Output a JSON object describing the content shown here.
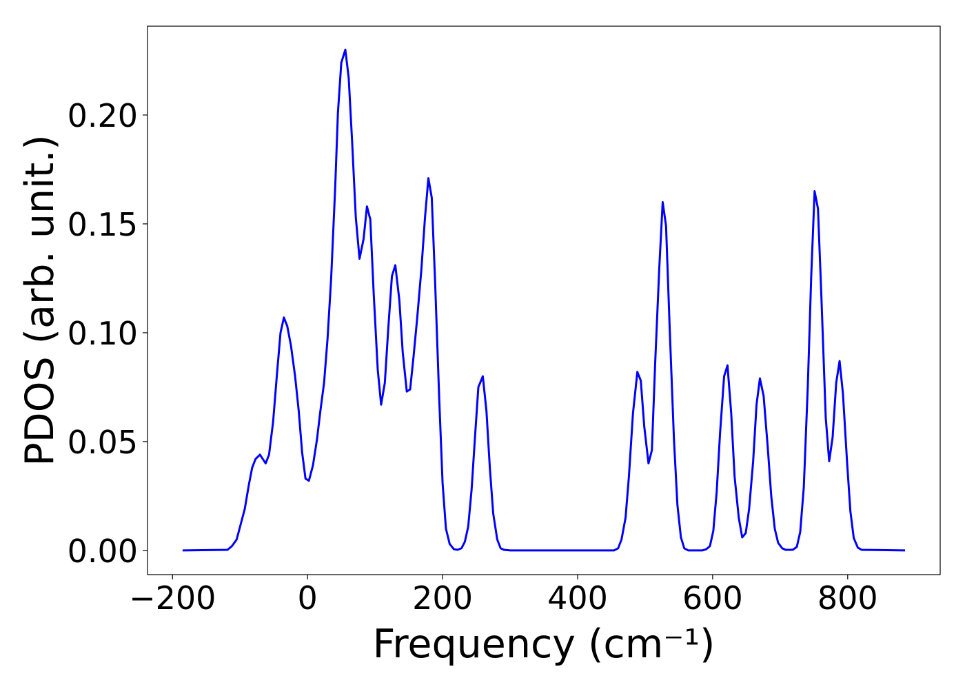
{
  "chart_data": {
    "type": "line",
    "x_label": "Frequency (cm⁻¹)",
    "y_label": "PDOS (arb. unit.)",
    "x": [
      -185,
      -118.5,
      -112,
      -105,
      -99,
      -93,
      -87,
      -82,
      -77,
      -70.5,
      -62,
      -57,
      -51,
      -45,
      -40,
      -35,
      -30,
      -24.5,
      -18.4,
      -13,
      -8,
      -3,
      2,
      8,
      14,
      19,
      24.5,
      29.6,
      35,
      41,
      45,
      50,
      56,
      61,
      66,
      71.5,
      77,
      83,
      88,
      93,
      98,
      104,
      109,
      114.5,
      119.6,
      125,
      130,
      136,
      141,
      147,
      152,
      157,
      162.5,
      168.6,
      174,
      179,
      184,
      189,
      195,
      200,
      205,
      210.5,
      216.7,
      222,
      228,
      233,
      238,
      243,
      248,
      253,
      259.6,
      265,
      270,
      275,
      281,
      286,
      291,
      300.5,
      453.8,
      460,
      465,
      471,
      476,
      482,
      488.5,
      493.6,
      498.7,
      505,
      510,
      515,
      521,
      526,
      531,
      536.5,
      542.7,
      547.8,
      553,
      558,
      564,
      584.5,
      590.7,
      596,
      601,
      606,
      611,
      617,
      622,
      627.5,
      632.5,
      638.7,
      643.8,
      649,
      654,
      660,
      665,
      670,
      675.5,
      681.7,
      686.8,
      692,
      697,
      703,
      708,
      718.5,
      724.6,
      729.7,
      735,
      741,
      746,
      751,
      756,
      761,
      767.5,
      772.6,
      777.7,
      783,
      788,
      793,
      799,
      804,
      809,
      815,
      820.6,
      885
    ],
    "values": [
      0,
      0.0003,
      0.002,
      0.005,
      0.012,
      0.019,
      0.03,
      0.038,
      0.042,
      0.044,
      0.04,
      0.044,
      0.059,
      0.082,
      0.1,
      0.107,
      0.103,
      0.094,
      0.08,
      0.064,
      0.045,
      0.033,
      0.032,
      0.039,
      0.051,
      0.064,
      0.077,
      0.097,
      0.125,
      0.167,
      0.201,
      0.224,
      0.23,
      0.217,
      0.188,
      0.153,
      0.134,
      0.143,
      0.158,
      0.152,
      0.118,
      0.083,
      0.067,
      0.077,
      0.102,
      0.126,
      0.131,
      0.115,
      0.091,
      0.073,
      0.074,
      0.089,
      0.107,
      0.129,
      0.153,
      0.171,
      0.162,
      0.123,
      0.07,
      0.031,
      0.01,
      0.003,
      0.0006,
      0.0003,
      0.001,
      0.004,
      0.011,
      0.028,
      0.052,
      0.075,
      0.08,
      0.064,
      0.038,
      0.017,
      0.005,
      0.001,
      0.0003,
      0,
      0,
      0.001,
      0.005,
      0.015,
      0.034,
      0.063,
      0.082,
      0.078,
      0.057,
      0.04,
      0.046,
      0.087,
      0.13,
      0.16,
      0.149,
      0.101,
      0.051,
      0.021,
      0.006,
      0.001,
      0,
      0,
      0.0006,
      0.002,
      0.009,
      0.027,
      0.054,
      0.08,
      0.085,
      0.063,
      0.034,
      0.015,
      0.006,
      0.008,
      0.019,
      0.041,
      0.067,
      0.079,
      0.071,
      0.047,
      0.025,
      0.01,
      0.0035,
      0.001,
      0.0003,
      0.0003,
      0.0016,
      0.0085,
      0.029,
      0.076,
      0.126,
      0.165,
      0.157,
      0.117,
      0.061,
      0.041,
      0.052,
      0.077,
      0.087,
      0.072,
      0.041,
      0.018,
      0.0057,
      0.0013,
      0.0003,
      0
    ],
    "color": "#0000ff",
    "xlim": [
      -237,
      937
    ],
    "ylim": [
      -0.0111,
      0.2408
    ],
    "xticks": [
      {
        "value": -200,
        "label": "−200"
      },
      0,
      200,
      400,
      600,
      800
    ],
    "yticks": [
      {
        "value": 0,
        "label": "0.00"
      },
      {
        "value": 0.05,
        "label": "0.05"
      },
      {
        "value": 0.1,
        "label": "0.10"
      },
      {
        "value": 0.15,
        "label": "0.15"
      },
      {
        "value": 0.2,
        "label": "0.20"
      }
    ],
    "grid": false
  }
}
